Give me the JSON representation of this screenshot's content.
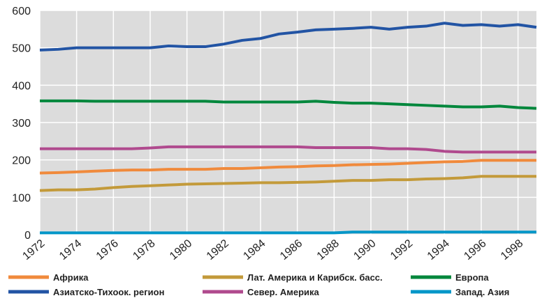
{
  "chart_data": {
    "type": "line",
    "x": [
      1972,
      1973,
      1974,
      1975,
      1976,
      1977,
      1978,
      1979,
      1980,
      1981,
      1982,
      1983,
      1984,
      1985,
      1986,
      1987,
      1988,
      1989,
      1990,
      1991,
      1992,
      1993,
      1994,
      1995,
      1996,
      1997,
      1998,
      1999
    ],
    "xlim": [
      1972,
      1999
    ],
    "xticks": [
      1972,
      1974,
      1976,
      1978,
      1980,
      1982,
      1984,
      1986,
      1988,
      1990,
      1992,
      1994,
      1996,
      1998
    ],
    "ylim": [
      0,
      600
    ],
    "yticks": [
      0,
      100,
      200,
      300,
      400,
      500,
      600
    ],
    "grid": true,
    "legend": "bottom",
    "series": [
      {
        "name": "Африка",
        "color": "#f08a3c",
        "values": [
          165,
          166,
          168,
          170,
          172,
          173,
          173,
          175,
          175,
          175,
          177,
          177,
          179,
          181,
          182,
          184,
          185,
          187,
          188,
          189,
          191,
          193,
          195,
          196,
          199,
          199,
          199,
          199
        ]
      },
      {
        "name": "Лат. Америка и Карибск. басс.",
        "color": "#c39a3a",
        "values": [
          118,
          120,
          120,
          122,
          126,
          129,
          131,
          133,
          135,
          136,
          137,
          138,
          139,
          139,
          140,
          141,
          143,
          145,
          145,
          147,
          147,
          149,
          150,
          152,
          156,
          156,
          156,
          156
        ]
      },
      {
        "name": "Европа",
        "color": "#00873c",
        "values": [
          358,
          358,
          358,
          357,
          357,
          357,
          357,
          357,
          357,
          357,
          355,
          355,
          355,
          355,
          355,
          357,
          354,
          352,
          352,
          350,
          348,
          346,
          344,
          342,
          342,
          344,
          340,
          338
        ]
      },
      {
        "name": "Азиатско-Тихоок. регион",
        "color": "#2254a4",
        "values": [
          494,
          496,
          500,
          500,
          500,
          500,
          500,
          505,
          503,
          503,
          510,
          520,
          525,
          537,
          542,
          548,
          550,
          552,
          555,
          550,
          555,
          558,
          566,
          560,
          562,
          558,
          562,
          555
        ]
      },
      {
        "name": "Север. Америка",
        "color": "#b04a8e",
        "values": [
          230,
          230,
          230,
          230,
          230,
          230,
          232,
          235,
          235,
          235,
          235,
          235,
          235,
          235,
          235,
          233,
          233,
          233,
          233,
          230,
          230,
          228,
          223,
          221,
          221,
          221,
          221,
          221
        ]
      },
      {
        "name": "Запад. Азия",
        "color": "#0096c8",
        "values": [
          5,
          5,
          5,
          5,
          5,
          5,
          5,
          5,
          5,
          5,
          5,
          5,
          5,
          5,
          5,
          5,
          5,
          7,
          7,
          7,
          7,
          7,
          7,
          7,
          7,
          7,
          7,
          7
        ]
      }
    ]
  }
}
